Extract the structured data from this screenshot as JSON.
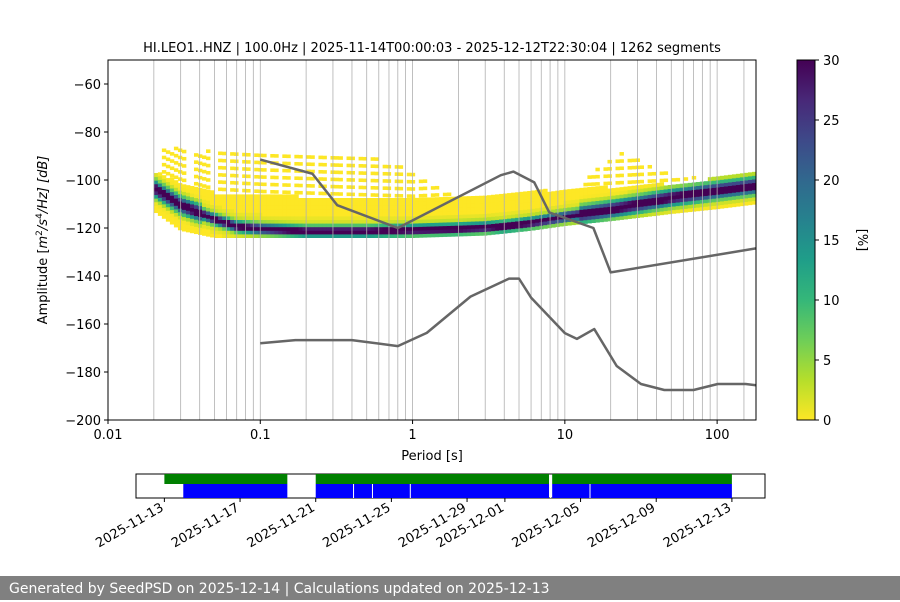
{
  "chart_data": [
    {
      "type": "heatmap",
      "title": "HI.LEO1..HNZ | 100.0Hz | 2025-11-14T00:00:03 - 2025-12-12T22:30:04 | 1262 segments",
      "xlabel": "Period [s]",
      "ylabel_pre": "Amplitude [",
      "ylabel_m": "m",
      "ylabel_exp1": "2",
      "ylabel_s": "/s",
      "ylabel_exp2": "4",
      "ylabel_post": "/Hz] [dB]",
      "xscale": "log",
      "xlim": [
        0.01,
        180
      ],
      "ylim": [
        -200,
        -50
      ],
      "xticks": [
        {
          "value": 0.01,
          "label": "0.01"
        },
        {
          "value": 0.1,
          "label": "0.1"
        },
        {
          "value": 1,
          "label": "1"
        },
        {
          "value": 10,
          "label": "10"
        },
        {
          "value": 100,
          "label": "100"
        }
      ],
      "yticks": [
        {
          "value": -60,
          "label": "−60"
        },
        {
          "value": -80,
          "label": "−80"
        },
        {
          "value": -100,
          "label": "−100"
        },
        {
          "value": -120,
          "label": "−120"
        },
        {
          "value": -140,
          "label": "−140"
        },
        {
          "value": -160,
          "label": "−160"
        },
        {
          "value": -180,
          "label": "−180"
        },
        {
          "value": -200,
          "label": "−200"
        }
      ],
      "grid_periods": [
        0.02,
        0.03,
        0.04,
        0.05,
        0.06,
        0.07,
        0.08,
        0.09,
        0.1,
        0.2,
        0.3,
        0.4,
        0.5,
        0.6,
        0.7,
        0.8,
        0.9,
        1,
        2,
        3,
        4,
        5,
        6,
        7,
        8,
        9,
        10,
        20,
        30,
        40,
        50,
        60,
        70,
        80,
        90,
        100,
        150
      ],
      "mode_curve": [
        [
          0.02,
          -104
        ],
        [
          0.03,
          -111
        ],
        [
          0.05,
          -117
        ],
        [
          0.07,
          -120
        ],
        [
          0.1,
          -121
        ],
        [
          0.2,
          -122
        ],
        [
          0.5,
          -122
        ],
        [
          1,
          -121.5
        ],
        [
          2,
          -121
        ],
        [
          4,
          -120
        ],
        [
          6,
          -118.5
        ],
        [
          10,
          -116
        ],
        [
          20,
          -113
        ],
        [
          50,
          -108
        ],
        [
          100,
          -105
        ],
        [
          180,
          -103
        ]
      ],
      "band_top": [
        [
          0.02,
          -97
        ],
        [
          0.03,
          -102
        ],
        [
          0.05,
          -106
        ],
        [
          0.1,
          -107
        ],
        [
          0.3,
          -108
        ],
        [
          1,
          -109
        ],
        [
          2,
          -108
        ],
        [
          4,
          -106
        ],
        [
          8,
          -105
        ],
        [
          15,
          -104
        ],
        [
          30,
          -103
        ],
        [
          60,
          -102
        ],
        [
          120,
          -99
        ],
        [
          180,
          -97
        ]
      ],
      "band_bottom": [
        [
          0.02,
          -113
        ],
        [
          0.03,
          -121
        ],
        [
          0.05,
          -124
        ],
        [
          0.1,
          -124
        ],
        [
          0.5,
          -124
        ],
        [
          1,
          -124
        ],
        [
          3,
          -123
        ],
        [
          6,
          -121
        ],
        [
          10,
          -119
        ],
        [
          20,
          -117
        ],
        [
          50,
          -114
        ],
        [
          100,
          -112
        ],
        [
          180,
          -110
        ]
      ],
      "scatter_upper": [
        [
          0.02,
          -87
        ],
        [
          0.2,
          -91
        ],
        [
          0.3,
          -90
        ],
        [
          0.5,
          -91
        ],
        [
          0.8,
          -94
        ],
        [
          1,
          -97
        ],
        [
          1.5,
          -103
        ],
        [
          2,
          -110
        ],
        [
          3,
          -111
        ],
        [
          10,
          -112
        ],
        [
          15,
          -98
        ],
        [
          20,
          -92
        ],
        [
          25,
          -89
        ],
        [
          35,
          -94
        ],
        [
          50,
          -99
        ],
        [
          80,
          -100
        ],
        [
          180,
          -96
        ]
      ],
      "nhnm": [
        [
          0.1,
          -91.5
        ],
        [
          0.22,
          -97.4
        ],
        [
          0.32,
          -110.5
        ],
        [
          0.8,
          -120
        ],
        [
          3.8,
          -98
        ],
        [
          4.6,
          -96.5
        ],
        [
          6.3,
          -101
        ],
        [
          7.9,
          -113.5
        ],
        [
          15.4,
          -120
        ],
        [
          20,
          -138.5
        ],
        [
          180,
          -128.5
        ]
      ],
      "nlnm": [
        [
          0.1,
          -168
        ],
        [
          0.17,
          -166.7
        ],
        [
          0.4,
          -166.7
        ],
        [
          0.8,
          -169.2
        ],
        [
          1.24,
          -163.7
        ],
        [
          2.4,
          -148.6
        ],
        [
          4.3,
          -141.1
        ],
        [
          5,
          -141.1
        ],
        [
          6,
          -149
        ],
        [
          10,
          -163.8
        ],
        [
          12,
          -166.2
        ],
        [
          15.6,
          -162.1
        ],
        [
          21.9,
          -177.5
        ],
        [
          31.6,
          -185
        ],
        [
          45,
          -187.5
        ],
        [
          70,
          -187.5
        ],
        [
          101,
          -185
        ],
        [
          154,
          -185
        ],
        [
          180,
          -185.5
        ]
      ],
      "colorbar": {
        "label": "[%]",
        "min": 0,
        "max": 30,
        "ticks": [
          0,
          5,
          10,
          15,
          20,
          25,
          30
        ],
        "stops": [
          "#fde725",
          "#b5de2b",
          "#6ece58",
          "#35b779",
          "#1f9e89",
          "#26828e",
          "#31688e",
          "#3e4989",
          "#482878",
          "#440154"
        ]
      }
    },
    {
      "type": "timeline",
      "xlim": [
        "2025-11-11T12:00",
        "2025-12-14T18:00"
      ],
      "tick_labels": [
        "2025-11-13",
        "2025-11-17",
        "2025-11-21",
        "2025-11-25",
        "2025-11-29",
        "2025-12-01",
        "2025-12-05",
        "2025-12-09",
        "2025-12-13"
      ],
      "upper_segments": [
        [
          "2025-11-13T00:00",
          "2025-11-19T12:00"
        ],
        [
          "2025-11-21T00:00",
          "2025-12-03T08:00"
        ],
        [
          "2025-12-03T12:00",
          "2025-12-13T00:00"
        ]
      ],
      "lower_segments": [
        [
          "2025-11-14T00:00",
          "2025-11-19T12:00"
        ],
        [
          "2025-11-21T00:00",
          "2025-12-03T08:00"
        ],
        [
          "2025-12-03T12:00",
          "2025-12-13T00:00"
        ]
      ],
      "gaps": [
        "2025-11-23T00:00",
        "2025-11-24T00:00",
        "2025-11-26T00:00",
        "2025-12-03T10:00",
        "2025-12-05T12:00"
      ],
      "colors": {
        "upper": "#008000",
        "lower": "#0000ff"
      }
    }
  ],
  "footer": "Generated by SeedPSD on 2025-12-14 | Calculations updated on 2025-12-13"
}
